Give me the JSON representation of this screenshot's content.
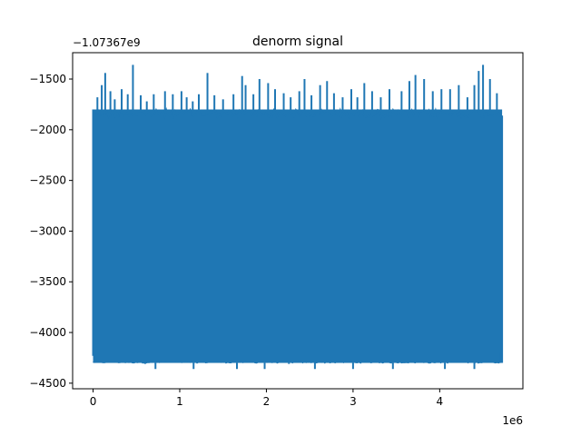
{
  "chart_data": {
    "type": "line",
    "title": "denorm signal",
    "xlabel": "",
    "ylabel": "",
    "x_multiplier_label": "1e6",
    "y_offset_label": "−1.07367e9",
    "xlim": [
      -0.236,
      4.96
    ],
    "ylim": [
      -4555,
      -1240
    ],
    "x_ticks": [
      0,
      1,
      2,
      3,
      4
    ],
    "x_tick_labels": [
      "0",
      "1",
      "2",
      "3",
      "4"
    ],
    "y_ticks": [
      -4500,
      -4000,
      -3500,
      -3000,
      -2500,
      -2000,
      -1500
    ],
    "y_tick_labels": [
      "−4500",
      "−4000",
      "−3500",
      "−3000",
      "−2500",
      "−2000",
      "−1500"
    ],
    "grid": false,
    "series": [
      {
        "color": "#1f77b4",
        "x_range": [
          0,
          4.72
        ],
        "band": {
          "y_low_dense": -4300,
          "y_high_dense": -1800
        },
        "upper_spikes": [
          [
            0.05,
            -1680
          ],
          [
            0.1,
            -1560
          ],
          [
            0.14,
            -1440
          ],
          [
            0.2,
            -1620
          ],
          [
            0.25,
            -1700
          ],
          [
            0.33,
            -1600
          ],
          [
            0.4,
            -1650
          ],
          [
            0.46,
            -1360
          ],
          [
            0.55,
            -1660
          ],
          [
            0.62,
            -1720
          ],
          [
            0.7,
            -1650
          ],
          [
            0.83,
            -1620
          ],
          [
            0.92,
            -1650
          ],
          [
            1.02,
            -1620
          ],
          [
            1.08,
            -1680
          ],
          [
            1.15,
            -1720
          ],
          [
            1.22,
            -1650
          ],
          [
            1.32,
            -1440
          ],
          [
            1.4,
            -1660
          ],
          [
            1.5,
            -1700
          ],
          [
            1.62,
            -1650
          ],
          [
            1.72,
            -1470
          ],
          [
            1.76,
            -1560
          ],
          [
            1.85,
            -1650
          ],
          [
            1.92,
            -1500
          ],
          [
            2.02,
            -1540
          ],
          [
            2.1,
            -1600
          ],
          [
            2.2,
            -1640
          ],
          [
            2.28,
            -1680
          ],
          [
            2.38,
            -1620
          ],
          [
            2.44,
            -1500
          ],
          [
            2.52,
            -1660
          ],
          [
            2.62,
            -1560
          ],
          [
            2.7,
            -1520
          ],
          [
            2.78,
            -1640
          ],
          [
            2.88,
            -1680
          ],
          [
            2.98,
            -1600
          ],
          [
            3.05,
            -1680
          ],
          [
            3.13,
            -1540
          ],
          [
            3.22,
            -1620
          ],
          [
            3.32,
            -1680
          ],
          [
            3.42,
            -1600
          ],
          [
            3.56,
            -1620
          ],
          [
            3.65,
            -1520
          ],
          [
            3.72,
            -1460
          ],
          [
            3.82,
            -1500
          ],
          [
            3.92,
            -1620
          ],
          [
            4.02,
            -1600
          ],
          [
            4.12,
            -1600
          ],
          [
            4.22,
            -1560
          ],
          [
            4.32,
            -1680
          ],
          [
            4.4,
            -1560
          ],
          [
            4.45,
            -1420
          ],
          [
            4.5,
            -1360
          ],
          [
            4.58,
            -1500
          ],
          [
            4.66,
            -1640
          ]
        ],
        "lower_spikes": [
          [
            0.02,
            -4210
          ],
          [
            0.14,
            -4290
          ],
          [
            0.3,
            -4300
          ],
          [
            0.42,
            -4290
          ],
          [
            0.6,
            -4310
          ],
          [
            0.72,
            -4360
          ],
          [
            0.86,
            -4300
          ],
          [
            1.0,
            -4300
          ],
          [
            1.16,
            -4360
          ],
          [
            1.3,
            -4300
          ],
          [
            1.46,
            -4300
          ],
          [
            1.66,
            -4360
          ],
          [
            1.84,
            -4300
          ],
          [
            1.98,
            -4360
          ],
          [
            2.12,
            -4300
          ],
          [
            2.26,
            -4310
          ],
          [
            2.42,
            -4300
          ],
          [
            2.56,
            -4360
          ],
          [
            2.7,
            -4300
          ],
          [
            2.86,
            -4300
          ],
          [
            3.0,
            -4360
          ],
          [
            3.16,
            -4300
          ],
          [
            3.3,
            -4300
          ],
          [
            3.46,
            -4360
          ],
          [
            3.6,
            -4300
          ],
          [
            3.76,
            -4300
          ],
          [
            3.9,
            -4300
          ],
          [
            4.06,
            -4360
          ],
          [
            4.22,
            -4300
          ],
          [
            4.4,
            -4360
          ],
          [
            4.6,
            -4300
          ],
          [
            4.7,
            -4200
          ]
        ]
      }
    ]
  }
}
